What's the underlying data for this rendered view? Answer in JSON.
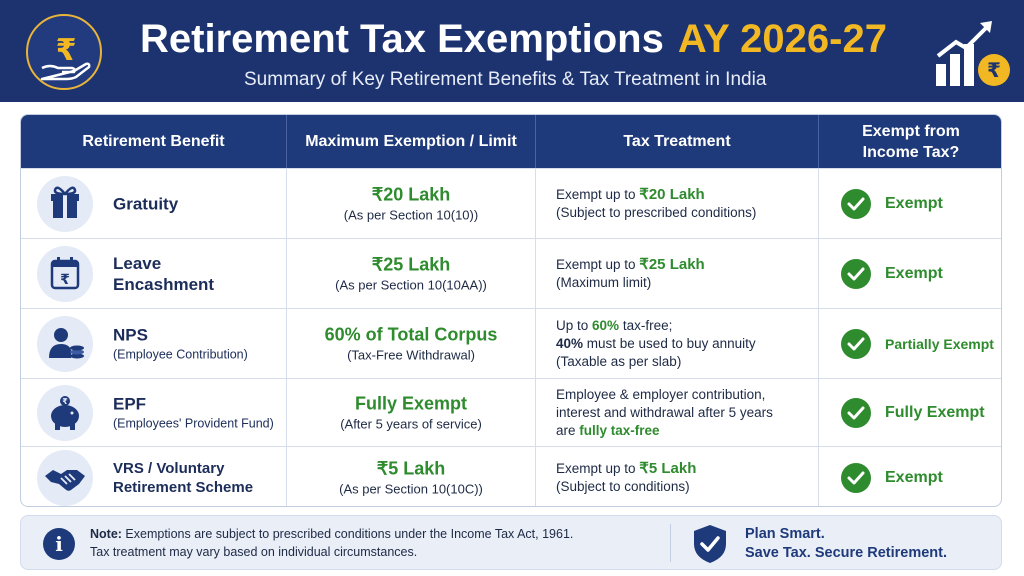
{
  "header": {
    "title": "Retirement Tax Exemptions",
    "year": "AY 2026-27",
    "subtitle": "Summary of Key Retirement Benefits & Tax Treatment in India",
    "logo_icon": "rupee-hand-icon",
    "growth_icon": "growth-chart-rupee-icon"
  },
  "colors": {
    "header_bg": "#1c3370",
    "accent_gold": "#f2b824",
    "green": "#2e8b2e",
    "text_dark": "#1e2a45"
  },
  "table": {
    "headers": {
      "benefit": "Retirement Benefit",
      "limit": "Maximum Exemption / Limit",
      "treatment": "Tax Treatment",
      "exempt_line1": "Exempt from",
      "exempt_line2": "Income Tax?"
    },
    "rows": [
      {
        "icon": "gift-icon",
        "name": "Gratuity",
        "sub": "",
        "limit": "₹20 Lakh",
        "limit_note": "(As per Section 10(10))",
        "treatment": {
          "prefix": "Exempt up to ",
          "highlight": "₹20 Lakh",
          "note": "(Subject to prescribed conditions)"
        },
        "status": "Exempt"
      },
      {
        "icon": "calendar-rupee-icon",
        "name_line1": "Leave",
        "name_line2": "Encashment",
        "limit": "₹25 Lakh",
        "limit_note": "(As per Section 10(10AA))",
        "treatment": {
          "prefix": "Exempt up to ",
          "highlight": "₹25 Lakh",
          "note": "(Maximum limit)"
        },
        "status": "Exempt"
      },
      {
        "icon": "person-coins-icon",
        "name": "NPS",
        "sub": "(Employee Contribution)",
        "limit": "60% of Total Corpus",
        "limit_note": "(Tax-Free Withdrawal)",
        "treatment": {
          "l1_prefix": "Up to ",
          "l1_highlight": "60%",
          "l1_suffix": " tax-free;",
          "l2_bold": "40%",
          "l2_suffix": " must be used to buy annuity",
          "l3": "(Taxable as per slab)"
        },
        "status": "Partially Exempt"
      },
      {
        "icon": "piggy-bank-icon",
        "name": "EPF",
        "sub": "(Employees' Provident Fund)",
        "limit": "Fully Exempt",
        "limit_note": "(After 5 years of service)",
        "treatment": {
          "l1": "Employee & employer contribution,",
          "l2": "interest and withdrawal after 5 years",
          "l3_prefix": "are ",
          "l3_highlight": "fully tax-free"
        },
        "status": "Fully Exempt"
      },
      {
        "icon": "handshake-icon",
        "name": "VRS / Voluntary",
        "name_line2": "Retirement Scheme",
        "limit": "₹5 Lakh",
        "limit_note": "(As per Section 10(10C))",
        "treatment": {
          "prefix": "Exempt up to ",
          "highlight": "₹5 Lakh",
          "note": "(Subject to conditions)"
        },
        "status": "Exempt"
      }
    ]
  },
  "footer": {
    "note_label": "Note:",
    "note_text1": " Exemptions are subject to prescribed conditions under the Income Tax Act, 1961.",
    "note_text2": "Tax treatment may vary based on individual circumstances.",
    "plan_line1": "Plan Smart.",
    "plan_line2": "Save Tax. Secure Retirement."
  }
}
